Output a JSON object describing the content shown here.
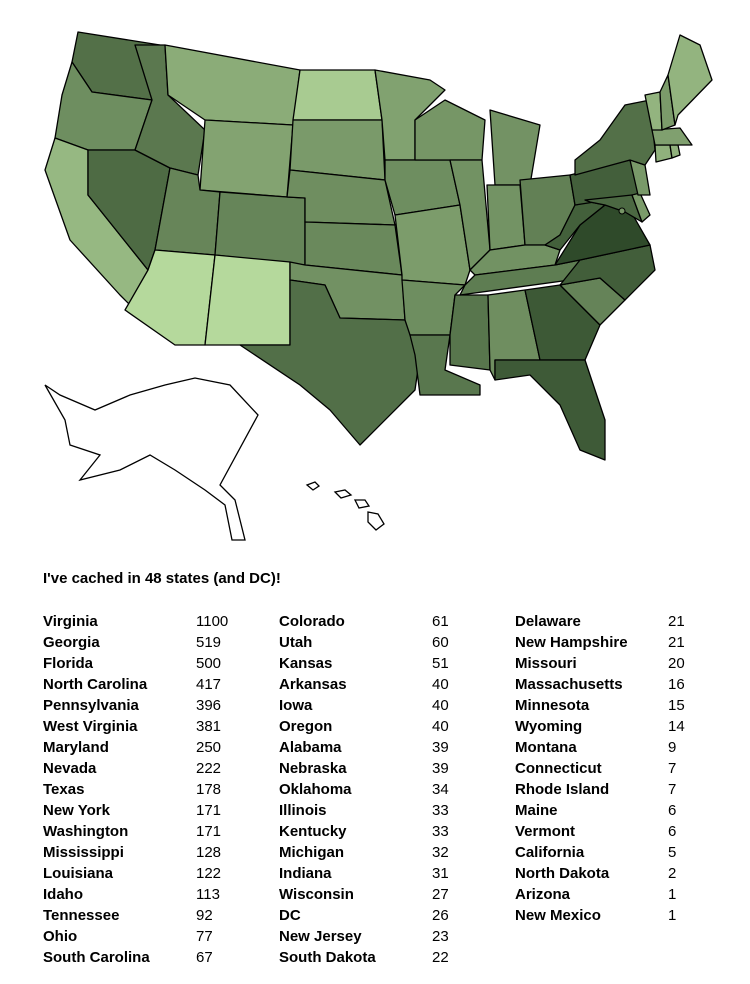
{
  "title": "I've cached in 48 states (and DC)!",
  "color_scale": {
    "low": "#b5d99c",
    "high": "#2f4a2a",
    "log": true
  },
  "states": [
    {
      "name": "Virginia",
      "count": 1100
    },
    {
      "name": "Georgia",
      "count": 519
    },
    {
      "name": "Florida",
      "count": 500
    },
    {
      "name": "North Carolina",
      "count": 417
    },
    {
      "name": "Pennsylvania",
      "count": 396
    },
    {
      "name": "West Virginia",
      "count": 381
    },
    {
      "name": "Maryland",
      "count": 250
    },
    {
      "name": "Nevada",
      "count": 222
    },
    {
      "name": "Texas",
      "count": 178
    },
    {
      "name": "New York",
      "count": 171
    },
    {
      "name": "Washington",
      "count": 171
    },
    {
      "name": "Mississippi",
      "count": 128
    },
    {
      "name": "Louisiana",
      "count": 122
    },
    {
      "name": "Idaho",
      "count": 113
    },
    {
      "name": "Tennessee",
      "count": 92
    },
    {
      "name": "Ohio",
      "count": 77
    },
    {
      "name": "South Carolina",
      "count": 67
    },
    {
      "name": "Colorado",
      "count": 61
    },
    {
      "name": "Utah",
      "count": 60
    },
    {
      "name": "Kansas",
      "count": 51
    },
    {
      "name": "Arkansas",
      "count": 40
    },
    {
      "name": "Iowa",
      "count": 40
    },
    {
      "name": "Oregon",
      "count": 40
    },
    {
      "name": "Alabama",
      "count": 39
    },
    {
      "name": "Nebraska",
      "count": 39
    },
    {
      "name": "Oklahoma",
      "count": 34
    },
    {
      "name": "Illinois",
      "count": 33
    },
    {
      "name": "Kentucky",
      "count": 33
    },
    {
      "name": "Michigan",
      "count": 32
    },
    {
      "name": "Indiana",
      "count": 31
    },
    {
      "name": "Wisconsin",
      "count": 27
    },
    {
      "name": "DC",
      "count": 26
    },
    {
      "name": "New Jersey",
      "count": 23
    },
    {
      "name": "South Dakota",
      "count": 22
    },
    {
      "name": "Delaware",
      "count": 21
    },
    {
      "name": "New Hampshire",
      "count": 21
    },
    {
      "name": "Missouri",
      "count": 20
    },
    {
      "name": "Massachusetts",
      "count": 16
    },
    {
      "name": "Minnesota",
      "count": 15
    },
    {
      "name": "Wyoming",
      "count": 14
    },
    {
      "name": "Montana",
      "count": 9
    },
    {
      "name": "Connecticut",
      "count": 7
    },
    {
      "name": "Rhode Island",
      "count": 7
    },
    {
      "name": "Maine",
      "count": 6
    },
    {
      "name": "Vermont",
      "count": 6
    },
    {
      "name": "California",
      "count": 5
    },
    {
      "name": "North Dakota",
      "count": 2
    },
    {
      "name": "Arizona",
      "count": 1
    },
    {
      "name": "New Mexico",
      "count": 1
    }
  ]
}
